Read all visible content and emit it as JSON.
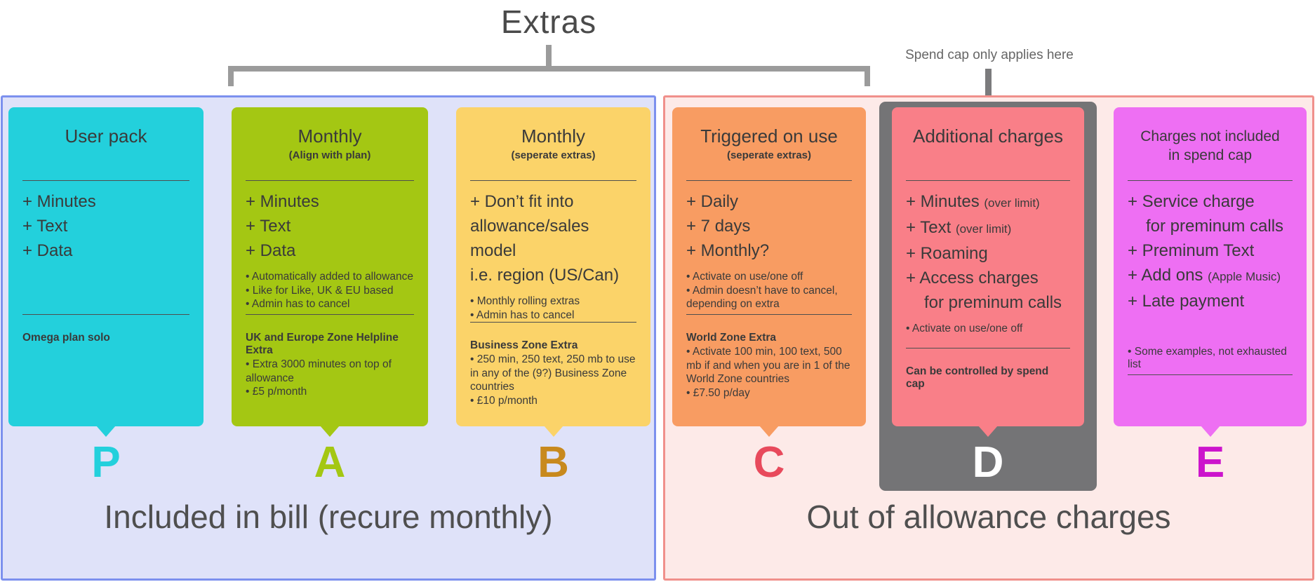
{
  "header": {
    "title": "Extras",
    "spend_cap_note": "Spend cap only applies here"
  },
  "sections": {
    "included": {
      "caption": "Included in bill (recure monthly)",
      "bg": "#dfe2f9",
      "border": "#7c90ee"
    },
    "out_of_allowance": {
      "caption": "Out of allowance charges",
      "bg": "#fdeae8",
      "border": "#f0908b"
    }
  },
  "cards": [
    {
      "letter": "P",
      "color": "#23d0dc",
      "letter_color": "#23d0dc",
      "title": "User pack",
      "subtitle": "",
      "items": [
        {
          "text": "+ Minutes"
        },
        {
          "text": "+ Text"
        },
        {
          "text": "+ Data"
        }
      ],
      "bullets": [],
      "footer_title": "Omega plan solo",
      "footer_bullets": []
    },
    {
      "letter": "A",
      "color": "#a4c713",
      "letter_color": "#a4c713",
      "title": "Monthly",
      "subtitle": "(Align with plan)",
      "items": [
        {
          "text": "+ Minutes"
        },
        {
          "text": "+ Text"
        },
        {
          "text": "+ Data"
        }
      ],
      "bullets": [
        "• Automatically added to allowance",
        "• Like for Like, UK & EU based",
        "• Admin has to cancel"
      ],
      "footer_title": "UK and Europe Zone Helpline Extra",
      "footer_bullets": [
        "• Extra 3000 minutes on top of allowance",
        "• £5 p/month"
      ]
    },
    {
      "letter": "B",
      "color": "#fbd369",
      "letter_color": "#c8891d",
      "title": "Monthly",
      "subtitle": "(seperate extras)",
      "items": [
        {
          "text": "+ Don’t fit into"
        },
        {
          "text": "allowance/sales model"
        },
        {
          "text": "i.e. region (US/Can)"
        }
      ],
      "bullets": [
        "• Monthly rolling extras",
        "• Admin has to cancel"
      ],
      "footer_title": "Business Zone Extra",
      "footer_bullets": [
        "• 250 min, 250 text, 250 mb to use in any of the (9?) Business Zone countries",
        "• £10 p/month"
      ]
    },
    {
      "letter": "C",
      "color": "#f89c62",
      "letter_color": "#e84a5c",
      "title": "Triggered on use",
      "subtitle": "(seperate extras)",
      "items": [
        {
          "text": "+ Daily"
        },
        {
          "text": "+ 7 days"
        },
        {
          "text": "+ Monthly?"
        }
      ],
      "bullets": [
        "• Activate on use/one off",
        "• Admin doesn’t have to cancel, depending on extra"
      ],
      "footer_title": "World Zone Extra",
      "footer_bullets": [
        "• Activate 100 min, 100 text, 500 mb if and when you are in 1 of the World Zone countries",
        "• £7.50 p/day"
      ]
    },
    {
      "letter": "D",
      "color": "#f97f88",
      "container_color": "#747476",
      "letter_color": "#ffffff",
      "title": "Additional charges",
      "subtitle": "",
      "items": [
        {
          "text": "+ Minutes ",
          "small": "(over limit)"
        },
        {
          "text": "+ Text ",
          "small": "(over limit)"
        },
        {
          "text": "+ Roaming"
        },
        {
          "text": "+ Access charges"
        },
        {
          "text": "for preminum calls",
          "indent": true
        }
      ],
      "bullets": [
        "• Activate on use/one off"
      ],
      "footer_title": "Can be controlled by spend cap",
      "footer_bullets": []
    },
    {
      "letter": "E",
      "color": "#ee6ff3",
      "letter_color": "#cc14cc",
      "title": "Charges not included in spend cap",
      "subtitle": "",
      "items": [
        {
          "text": "+ Service charge"
        },
        {
          "text": "for preminum calls",
          "indent": true
        },
        {
          "text": "+ Preminum Text"
        },
        {
          "text": "+ Add ons ",
          "small": "(Apple Music)"
        },
        {
          "text": "+ Late payment"
        }
      ],
      "bullets": [],
      "footer_note": "• Some examples, not exhausted list"
    }
  ]
}
